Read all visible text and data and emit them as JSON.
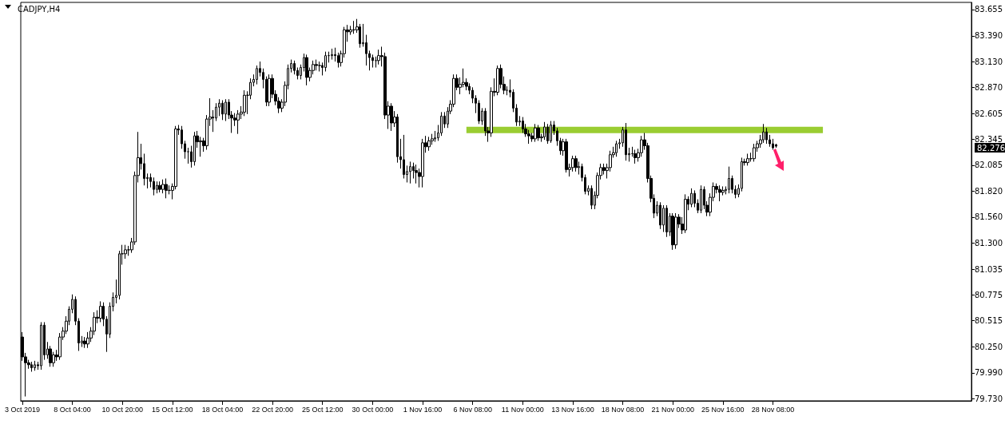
{
  "chart_data": {
    "type": "candlestick",
    "title": "CADJPY,H4",
    "categories": [
      "3 Oct 2019",
      null,
      null,
      null,
      null,
      null,
      null,
      null,
      null,
      null,
      null,
      null,
      null,
      null,
      null,
      null,
      "8 Oct 04:00",
      null,
      null,
      null,
      null,
      null,
      null,
      null,
      null,
      null,
      null,
      null,
      null,
      null,
      null,
      null,
      "10 Oct 20:00",
      null,
      null,
      null,
      null,
      null,
      null,
      null,
      null,
      null,
      null,
      null,
      null,
      null,
      null,
      null,
      "15 Oct 12:00",
      null,
      null,
      null,
      null,
      null,
      null,
      null,
      null,
      null,
      null,
      null,
      null,
      null,
      null,
      null,
      "18 Oct 04:00",
      null,
      null,
      null,
      null,
      null,
      null,
      null,
      null,
      null,
      null,
      null,
      null,
      null,
      null,
      null,
      "22 Oct 20:00",
      null,
      null,
      null,
      null,
      null,
      null,
      null,
      null,
      null,
      null,
      null,
      null,
      null,
      null,
      null,
      "25 Oct 12:00",
      null,
      null,
      null,
      null,
      null,
      null,
      null,
      null,
      null,
      null,
      null,
      null,
      null,
      null,
      null,
      "30 Oct 00:00",
      null,
      null,
      null,
      null,
      null,
      null,
      null,
      null,
      null,
      null,
      null,
      null,
      null,
      null,
      null,
      "1 Nov 16:00",
      null,
      null,
      null,
      null,
      null,
      null,
      null,
      null,
      null,
      null,
      null,
      null,
      null,
      null,
      null,
      "6 Nov 08:00",
      null,
      null,
      null,
      null,
      null,
      null,
      null,
      null,
      null,
      null,
      null,
      null,
      null,
      null,
      null,
      "11 Nov 00:00",
      null,
      null,
      null,
      null,
      null,
      null,
      null,
      null,
      null,
      null,
      null,
      null,
      null,
      null,
      null,
      "13 Nov 16:00",
      null,
      null,
      null,
      null,
      null,
      null,
      null,
      null,
      null,
      null,
      null,
      null,
      null,
      null,
      null,
      "18 Nov 08:00",
      null,
      null,
      null,
      null,
      null,
      null,
      null,
      null,
      null,
      null,
      null,
      null,
      null,
      null,
      null,
      "21 Nov 00:00",
      null,
      null,
      null,
      null,
      null,
      null,
      null,
      null,
      null,
      null,
      null,
      null,
      null,
      null,
      null,
      "25 Nov 16:00",
      null,
      null,
      null,
      null,
      null,
      null,
      null,
      null,
      null,
      null,
      null,
      null,
      null,
      null,
      null,
      "28 Nov 08:00",
      null,
      null,
      null,
      null,
      null,
      null,
      null,
      null,
      null,
      null,
      null,
      null,
      null,
      null,
      null,
      null,
      null,
      null,
      null,
      null,
      null,
      null,
      null,
      null,
      null,
      null,
      null,
      null,
      null,
      null,
      null,
      null,
      null,
      null,
      null,
      null,
      null,
      null,
      null,
      null,
      null,
      null,
      null,
      null,
      null,
      null,
      null,
      null,
      null,
      null,
      null,
      null,
      null,
      null,
      null,
      null,
      null,
      null,
      null,
      null,
      null,
      null,
      null
    ],
    "ohlc": [
      [
        80.35,
        80.4,
        80.11,
        80.15
      ],
      [
        80.15,
        80.19,
        79.75,
        80.09
      ],
      [
        80.09,
        80.12,
        80.03,
        80.07
      ],
      [
        80.07,
        80.1,
        80.0,
        80.04
      ],
      [
        80.04,
        80.11,
        80.01,
        80.07
      ],
      [
        80.07,
        80.1,
        80.02,
        80.06
      ],
      [
        80.06,
        80.5,
        80.02,
        80.47
      ],
      [
        80.47,
        80.5,
        80.12,
        80.17
      ],
      [
        80.17,
        80.3,
        80.13,
        80.23
      ],
      [
        80.23,
        80.26,
        80.05,
        80.09
      ],
      [
        80.09,
        80.2,
        80.05,
        80.17
      ],
      [
        80.17,
        80.22,
        80.11,
        80.15
      ],
      [
        80.15,
        80.39,
        80.12,
        80.35
      ],
      [
        80.35,
        80.45,
        80.32,
        80.41
      ],
      [
        80.41,
        80.56,
        80.38,
        80.51
      ],
      [
        80.51,
        80.66,
        80.47,
        80.63
      ],
      [
        80.63,
        80.78,
        80.59,
        80.73
      ],
      [
        80.73,
        80.76,
        80.47,
        80.51
      ],
      [
        80.51,
        80.54,
        80.21,
        80.29
      ],
      [
        80.29,
        80.36,
        80.25,
        80.31
      ],
      [
        80.31,
        80.35,
        80.24,
        80.28
      ],
      [
        80.28,
        80.4,
        80.24,
        80.34
      ],
      [
        80.34,
        80.45,
        80.3,
        80.41
      ],
      [
        80.41,
        80.6,
        80.37,
        80.55
      ],
      [
        80.55,
        80.62,
        80.49,
        80.54
      ],
      [
        80.54,
        80.71,
        80.5,
        80.66
      ],
      [
        80.66,
        80.7,
        80.46,
        80.53
      ],
      [
        80.53,
        80.56,
        80.2,
        80.38
      ],
      [
        80.38,
        80.7,
        80.34,
        80.66
      ],
      [
        80.66,
        80.8,
        80.61,
        80.75
      ],
      [
        80.75,
        80.93,
        80.69,
        80.77
      ],
      [
        80.77,
        81.22,
        80.73,
        81.19
      ],
      [
        81.19,
        81.28,
        81.08,
        81.19
      ],
      [
        81.19,
        81.28,
        81.14,
        81.23
      ],
      [
        81.23,
        81.27,
        81.17,
        81.23
      ],
      [
        81.23,
        81.35,
        81.2,
        81.31
      ],
      [
        81.31,
        82.02,
        81.28,
        81.98
      ],
      [
        81.98,
        82.42,
        81.91,
        82.16
      ],
      [
        82.16,
        82.3,
        82.04,
        82.1
      ],
      [
        82.1,
        82.2,
        81.88,
        81.95
      ],
      [
        81.95,
        82.0,
        81.85,
        81.96
      ],
      [
        81.96,
        82.0,
        81.86,
        81.92
      ],
      [
        81.92,
        81.96,
        81.78,
        81.84
      ],
      [
        81.84,
        81.92,
        81.8,
        81.88
      ],
      [
        81.88,
        81.92,
        81.81,
        81.84
      ],
      [
        81.84,
        81.94,
        81.8,
        81.89
      ],
      [
        81.89,
        81.95,
        81.75,
        81.83
      ],
      [
        81.83,
        81.88,
        81.79,
        81.83
      ],
      [
        81.83,
        81.9,
        81.74,
        81.87
      ],
      [
        81.87,
        82.48,
        81.84,
        82.45
      ],
      [
        82.45,
        82.49,
        82.39,
        82.44
      ],
      [
        82.44,
        82.48,
        82.25,
        82.3
      ],
      [
        82.3,
        82.33,
        82.15,
        82.22
      ],
      [
        82.22,
        82.26,
        82.1,
        82.22
      ],
      [
        82.22,
        82.28,
        82.06,
        82.12
      ],
      [
        82.12,
        82.42,
        82.08,
        82.38
      ],
      [
        82.38,
        82.43,
        82.26,
        82.32
      ],
      [
        82.32,
        82.37,
        82.17,
        82.33
      ],
      [
        82.33,
        82.36,
        82.22,
        82.28
      ],
      [
        82.28,
        82.59,
        82.24,
        82.55
      ],
      [
        82.55,
        82.76,
        82.48,
        82.57
      ],
      [
        82.57,
        82.64,
        82.42,
        82.56
      ],
      [
        82.56,
        82.71,
        82.53,
        82.67
      ],
      [
        82.67,
        82.75,
        82.58,
        82.71
      ],
      [
        82.71,
        82.74,
        82.54,
        82.6
      ],
      [
        82.6,
        82.75,
        82.53,
        82.72
      ],
      [
        82.72,
        82.75,
        82.55,
        82.59
      ],
      [
        82.59,
        82.63,
        82.41,
        82.56
      ],
      [
        82.56,
        82.61,
        82.48,
        82.54
      ],
      [
        82.54,
        82.64,
        82.4,
        82.6
      ],
      [
        82.6,
        82.68,
        82.55,
        82.62
      ],
      [
        82.62,
        82.84,
        82.58,
        82.79
      ],
      [
        82.79,
        82.83,
        82.6,
        82.79
      ],
      [
        82.79,
        82.96,
        82.75,
        82.92
      ],
      [
        82.92,
        83.0,
        82.88,
        82.95
      ],
      [
        82.95,
        83.09,
        82.9,
        83.06
      ],
      [
        83.06,
        83.13,
        82.98,
        83.02
      ],
      [
        83.02,
        83.06,
        82.86,
        82.95
      ],
      [
        82.95,
        82.98,
        82.68,
        82.72
      ],
      [
        82.72,
        83.0,
        82.68,
        82.96
      ],
      [
        82.96,
        83.0,
        82.76,
        82.8
      ],
      [
        82.8,
        82.84,
        82.69,
        82.73
      ],
      [
        82.73,
        82.77,
        82.61,
        82.66
      ],
      [
        82.66,
        82.75,
        82.62,
        82.72
      ],
      [
        82.72,
        82.93,
        82.68,
        82.89
      ],
      [
        82.89,
        83.1,
        82.85,
        83.06
      ],
      [
        83.06,
        83.15,
        83.02,
        83.11
      ],
      [
        83.11,
        83.14,
        83.0,
        83.04
      ],
      [
        83.04,
        83.07,
        82.95,
        82.99
      ],
      [
        82.99,
        83.1,
        82.95,
        83.07
      ],
      [
        83.07,
        83.21,
        83.03,
        83.17
      ],
      [
        83.17,
        83.2,
        82.89,
        82.97
      ],
      [
        82.97,
        83.07,
        82.93,
        83.04
      ],
      [
        83.04,
        83.14,
        83.0,
        83.1
      ],
      [
        83.1,
        83.15,
        83.04,
        83.09
      ],
      [
        83.09,
        83.13,
        83.03,
        83.09
      ],
      [
        83.09,
        83.12,
        82.99,
        83.07
      ],
      [
        83.07,
        83.23,
        83.03,
        83.19
      ],
      [
        83.19,
        83.23,
        83.12,
        83.19
      ],
      [
        83.19,
        83.26,
        83.15,
        83.2
      ],
      [
        83.2,
        83.27,
        83.13,
        83.19
      ],
      [
        83.19,
        83.22,
        83.07,
        83.12
      ],
      [
        83.12,
        83.24,
        83.08,
        83.21
      ],
      [
        83.21,
        83.48,
        83.17,
        83.45
      ],
      [
        83.45,
        83.5,
        83.33,
        83.43
      ],
      [
        83.43,
        83.49,
        83.4,
        83.45
      ],
      [
        83.45,
        83.54,
        83.41,
        83.45
      ],
      [
        83.45,
        83.56,
        83.42,
        83.48
      ],
      [
        83.48,
        83.51,
        83.27,
        83.31
      ],
      [
        83.31,
        83.51,
        83.28,
        83.32
      ],
      [
        83.32,
        83.4,
        83.09,
        83.21
      ],
      [
        83.21,
        83.24,
        83.04,
        83.17
      ],
      [
        83.17,
        83.2,
        83.07,
        83.14
      ],
      [
        83.14,
        83.18,
        83.07,
        83.14
      ],
      [
        83.14,
        83.25,
        83.1,
        83.19
      ],
      [
        83.19,
        83.28,
        83.08,
        83.18
      ],
      [
        83.18,
        83.22,
        82.55,
        82.59
      ],
      [
        82.59,
        82.73,
        82.45,
        82.68
      ],
      [
        82.68,
        82.71,
        82.43,
        82.51
      ],
      [
        82.51,
        82.63,
        82.47,
        82.57
      ],
      [
        82.57,
        82.6,
        82.11,
        82.17
      ],
      [
        82.17,
        82.35,
        82.05,
        82.14
      ],
      [
        82.14,
        82.39,
        81.95,
        81.99
      ],
      [
        81.99,
        82.08,
        81.91,
        82.02
      ],
      [
        82.02,
        82.12,
        81.9,
        82.07
      ],
      [
        82.07,
        82.11,
        81.95,
        82.03
      ],
      [
        82.03,
        82.09,
        81.9,
        82.01
      ],
      [
        82.01,
        82.05,
        81.86,
        81.97
      ],
      [
        81.97,
        82.35,
        81.86,
        82.31
      ],
      [
        82.31,
        82.38,
        82.21,
        82.27
      ],
      [
        82.27,
        82.37,
        82.23,
        82.33
      ],
      [
        82.33,
        82.4,
        82.29,
        82.35
      ],
      [
        82.35,
        82.43,
        82.32,
        82.36
      ],
      [
        82.36,
        82.49,
        82.33,
        82.41
      ],
      [
        82.41,
        82.62,
        82.38,
        82.58
      ],
      [
        82.58,
        82.62,
        82.46,
        82.5
      ],
      [
        82.5,
        82.67,
        82.46,
        82.63
      ],
      [
        82.63,
        82.74,
        82.6,
        82.7
      ],
      [
        82.7,
        83.0,
        82.67,
        82.96
      ],
      [
        82.96,
        83.0,
        82.84,
        82.87
      ],
      [
        82.87,
        82.97,
        82.8,
        82.9
      ],
      [
        82.9,
        83.06,
        82.87,
        82.92
      ],
      [
        82.92,
        82.96,
        82.84,
        82.88
      ],
      [
        82.88,
        82.91,
        82.8,
        82.84
      ],
      [
        82.84,
        82.87,
        82.71,
        82.76
      ],
      [
        82.76,
        82.79,
        82.61,
        82.71
      ],
      [
        82.71,
        82.74,
        82.5,
        82.53
      ],
      [
        82.53,
        82.66,
        82.49,
        82.63
      ],
      [
        82.63,
        82.66,
        82.38,
        82.43
      ],
      [
        82.43,
        82.47,
        82.32,
        82.41
      ],
      [
        82.41,
        82.87,
        82.37,
        82.83
      ],
      [
        82.83,
        82.96,
        82.78,
        82.82
      ],
      [
        82.82,
        83.09,
        82.79,
        83.06
      ],
      [
        83.06,
        83.1,
        82.86,
        82.9
      ],
      [
        82.9,
        82.98,
        82.8,
        82.84
      ],
      [
        82.84,
        82.88,
        82.79,
        82.84
      ],
      [
        82.84,
        82.95,
        82.77,
        82.82
      ],
      [
        82.82,
        82.85,
        82.62,
        82.66
      ],
      [
        82.66,
        82.7,
        82.48,
        82.52
      ],
      [
        82.52,
        82.58,
        82.48,
        82.53
      ],
      [
        82.53,
        82.57,
        82.41,
        82.45
      ],
      [
        82.45,
        82.5,
        82.37,
        82.4
      ],
      [
        82.4,
        82.44,
        82.3,
        82.38
      ],
      [
        82.38,
        82.41,
        82.32,
        82.35
      ],
      [
        82.35,
        82.5,
        82.32,
        82.46
      ],
      [
        82.46,
        82.49,
        82.33,
        82.36
      ],
      [
        82.36,
        82.4,
        82.32,
        82.37
      ],
      [
        82.37,
        82.52,
        82.34,
        82.47
      ],
      [
        82.47,
        82.5,
        82.3,
        82.33
      ],
      [
        82.33,
        82.53,
        82.31,
        82.49
      ],
      [
        82.49,
        82.53,
        82.39,
        82.43
      ],
      [
        82.43,
        82.46,
        82.28,
        82.33
      ],
      [
        82.33,
        82.36,
        82.19,
        82.23
      ],
      [
        82.23,
        82.35,
        82.18,
        82.32
      ],
      [
        82.32,
        82.35,
        82.01,
        82.04
      ],
      [
        82.04,
        82.1,
        81.97,
        82.06
      ],
      [
        82.06,
        82.18,
        82.02,
        82.15
      ],
      [
        82.15,
        82.18,
        82.02,
        82.06
      ],
      [
        82.06,
        82.12,
        81.99,
        82.07
      ],
      [
        82.07,
        82.1,
        81.92,
        81.96
      ],
      [
        81.96,
        81.99,
        81.79,
        81.82
      ],
      [
        81.82,
        81.88,
        81.78,
        81.85
      ],
      [
        81.85,
        81.88,
        81.64,
        81.68
      ],
      [
        81.68,
        81.82,
        81.64,
        81.78
      ],
      [
        81.78,
        82.01,
        81.75,
        81.98
      ],
      [
        81.98,
        82.1,
        81.94,
        82.06
      ],
      [
        82.06,
        82.1,
        81.99,
        82.03
      ],
      [
        82.03,
        82.1,
        81.95,
        82.06
      ],
      [
        82.06,
        82.23,
        82.02,
        82.19
      ],
      [
        82.19,
        82.27,
        82.16,
        82.21
      ],
      [
        82.21,
        82.33,
        82.17,
        82.3
      ],
      [
        82.3,
        82.35,
        82.25,
        82.31
      ],
      [
        82.31,
        82.47,
        82.27,
        82.44
      ],
      [
        82.44,
        82.51,
        82.13,
        82.19
      ],
      [
        82.19,
        82.26,
        82.12,
        82.2
      ],
      [
        82.2,
        82.27,
        82.17,
        82.2
      ],
      [
        82.2,
        82.24,
        82.1,
        82.16
      ],
      [
        82.16,
        82.25,
        82.12,
        82.21
      ],
      [
        82.21,
        82.38,
        82.17,
        82.34
      ],
      [
        82.34,
        82.41,
        82.24,
        82.28
      ],
      [
        82.28,
        82.31,
        81.91,
        81.95
      ],
      [
        81.95,
        81.98,
        81.71,
        81.75
      ],
      [
        81.75,
        81.79,
        81.55,
        81.6
      ],
      [
        81.6,
        81.72,
        81.57,
        81.68
      ],
      [
        81.68,
        81.71,
        81.44,
        81.48
      ],
      [
        81.48,
        81.68,
        81.41,
        81.65
      ],
      [
        81.65,
        81.68,
        81.36,
        81.41
      ],
      [
        81.41,
        81.6,
        81.37,
        81.57
      ],
      [
        81.57,
        81.6,
        81.23,
        81.28
      ],
      [
        81.28,
        81.6,
        81.24,
        81.56
      ],
      [
        81.56,
        81.59,
        81.45,
        81.49
      ],
      [
        81.49,
        81.56,
        81.39,
        81.43
      ],
      [
        81.43,
        81.79,
        81.4,
        81.74
      ],
      [
        81.74,
        81.77,
        81.63,
        81.69
      ],
      [
        81.69,
        81.85,
        81.66,
        81.8
      ],
      [
        81.8,
        81.83,
        81.66,
        81.7
      ],
      [
        81.7,
        81.74,
        81.6,
        81.63
      ],
      [
        81.63,
        81.88,
        81.6,
        81.84
      ],
      [
        81.84,
        81.87,
        81.64,
        81.68
      ],
      [
        81.68,
        81.72,
        81.57,
        81.61
      ],
      [
        81.61,
        81.8,
        81.57,
        81.76
      ],
      [
        81.76,
        81.91,
        81.72,
        81.87
      ],
      [
        81.87,
        81.9,
        81.8,
        81.84
      ],
      [
        81.84,
        81.88,
        81.72,
        81.81
      ],
      [
        81.81,
        81.87,
        81.78,
        81.83
      ],
      [
        81.83,
        81.87,
        81.79,
        81.84
      ],
      [
        81.84,
        82.07,
        81.8,
        81.95
      ],
      [
        81.95,
        81.98,
        81.8,
        81.84
      ],
      [
        81.84,
        81.88,
        81.75,
        81.79
      ],
      [
        81.79,
        81.89,
        81.76,
        81.85
      ],
      [
        81.85,
        82.16,
        81.82,
        82.12
      ],
      [
        82.12,
        82.15,
        82.08,
        82.11
      ],
      [
        82.11,
        82.2,
        82.08,
        82.15
      ],
      [
        82.15,
        82.21,
        82.12,
        82.15
      ],
      [
        82.15,
        82.3,
        82.12,
        82.26
      ],
      [
        82.26,
        82.33,
        82.22,
        82.3
      ],
      [
        82.3,
        82.39,
        82.26,
        82.34
      ],
      [
        82.34,
        82.5,
        82.31,
        82.42
      ],
      [
        82.42,
        82.46,
        82.3,
        82.34
      ],
      [
        82.34,
        82.39,
        82.27,
        82.3
      ],
      [
        82.3,
        82.35,
        82.24,
        82.26
      ],
      [
        82.29,
        82.3,
        82.26,
        82.276
      ],
      null,
      null,
      null,
      null,
      null,
      null,
      null,
      null,
      null,
      null,
      null,
      null,
      null,
      null,
      null,
      null,
      null,
      null,
      null,
      null,
      null,
      null,
      null,
      null,
      null,
      null,
      null,
      null,
      null,
      null,
      null,
      null,
      null,
      null,
      null,
      null,
      null,
      null,
      null,
      null,
      null,
      null,
      null,
      null,
      null,
      null,
      null,
      null,
      null,
      null,
      null,
      null,
      null,
      null,
      null,
      null,
      null,
      null,
      null,
      null,
      null,
      null
    ],
    "series": [
      {
        "type": "line",
        "color": "#9acd32",
        "values": [
          null,
          null,
          null,
          null,
          null,
          null,
          null,
          null,
          null,
          null,
          null,
          null,
          null,
          null,
          null,
          null,
          null,
          null,
          null,
          null,
          null,
          null,
          null,
          null,
          null,
          null,
          null,
          null,
          null,
          null,
          null,
          null,
          null,
          null,
          null,
          null,
          null,
          null,
          null,
          null,
          null,
          null,
          null,
          null,
          null,
          null,
          null,
          null,
          null,
          null,
          null,
          null,
          null,
          null,
          null,
          null,
          null,
          null,
          null,
          null,
          null,
          null,
          null,
          null,
          null,
          null,
          null,
          null,
          null,
          null,
          null,
          null,
          null,
          null,
          null,
          null,
          null,
          null,
          null,
          null,
          null,
          null,
          null,
          null,
          null,
          null,
          null,
          null,
          null,
          null,
          null,
          null,
          null,
          null,
          null,
          null,
          null,
          null,
          null,
          null,
          null,
          null,
          null,
          null,
          null,
          null,
          null,
          null,
          null,
          null,
          null,
          null,
          null,
          null,
          null,
          null,
          null,
          null,
          null,
          null,
          null,
          null,
          null,
          null,
          null,
          null,
          null,
          null,
          null,
          null,
          null,
          null,
          null,
          null,
          null,
          null,
          null,
          null,
          null,
          null,
          null,
          null,
          82.44,
          82.44,
          82.44,
          82.44,
          82.44,
          82.44,
          82.44,
          82.44,
          82.44,
          82.44,
          82.44,
          82.44,
          82.44,
          82.44,
          82.44,
          82.44,
          82.44,
          82.44,
          82.44,
          82.44,
          82.44,
          82.44,
          82.44,
          82.44,
          82.44,
          82.44,
          82.44,
          82.44,
          82.44,
          82.44,
          82.44,
          82.44,
          82.44,
          82.44,
          82.44,
          82.44,
          82.44,
          82.44,
          82.44,
          82.44,
          82.44,
          82.44,
          82.44,
          82.44,
          82.44,
          82.44,
          82.44,
          82.44,
          82.44,
          82.44,
          82.44,
          82.44,
          82.44,
          82.44,
          82.44,
          82.44,
          82.44,
          82.44,
          82.44,
          82.44,
          82.44,
          82.44,
          82.44,
          82.44,
          82.44,
          82.44,
          82.44,
          82.44,
          82.44,
          82.44,
          82.44,
          82.44,
          82.44,
          82.44,
          82.44,
          82.44,
          82.44,
          82.44,
          82.44,
          82.44,
          82.44,
          82.44,
          82.44,
          82.44,
          82.44,
          82.44,
          82.44,
          82.44,
          82.44,
          82.44,
          82.44,
          82.44,
          82.44,
          82.44,
          82.44,
          82.44,
          82.44,
          82.44,
          82.44,
          82.44,
          82.44,
          82.44,
          82.44,
          82.44,
          82.44,
          82.44,
          82.44,
          82.44,
          82.44,
          82.44,
          82.44,
          82.44,
          82.44,
          82.44,
          82.44,
          null,
          null,
          null,
          null,
          null,
          null,
          null,
          null,
          null,
          null,
          null,
          null,
          null,
          null,
          null,
          null,
          null,
          null,
          null,
          null,
          null,
          null,
          null,
          null,
          null,
          null,
          null,
          null,
          null,
          null,
          null,
          null,
          null,
          null,
          null,
          null,
          null,
          null,
          null,
          null,
          null,
          null,
          null,
          null,
          null,
          null,
          null
        ]
      }
    ],
    "ylim": [
      79.706,
      83.727
    ],
    "yticks": [
      83.655,
      {
        "value": 83.39,
        "label": "83.390"
      },
      {
        "value": 83.13,
        "label": "83.130"
      },
      {
        "value": 82.87,
        "label": "82.870"
      },
      82.605,
      82.345,
      82.085,
      {
        "value": 81.82,
        "label": "81.820"
      },
      {
        "value": 81.56,
        "label": "81.560"
      },
      {
        "value": 81.3,
        "label": "81.300"
      },
      81.035,
      80.775,
      80.515,
      {
        "value": 80.25,
        "label": "80.250"
      },
      {
        "value": 79.99,
        "label": "79.990"
      },
      {
        "value": 79.73,
        "label": "79.730"
      }
    ],
    "annotations": [
      "82.276"
    ]
  }
}
